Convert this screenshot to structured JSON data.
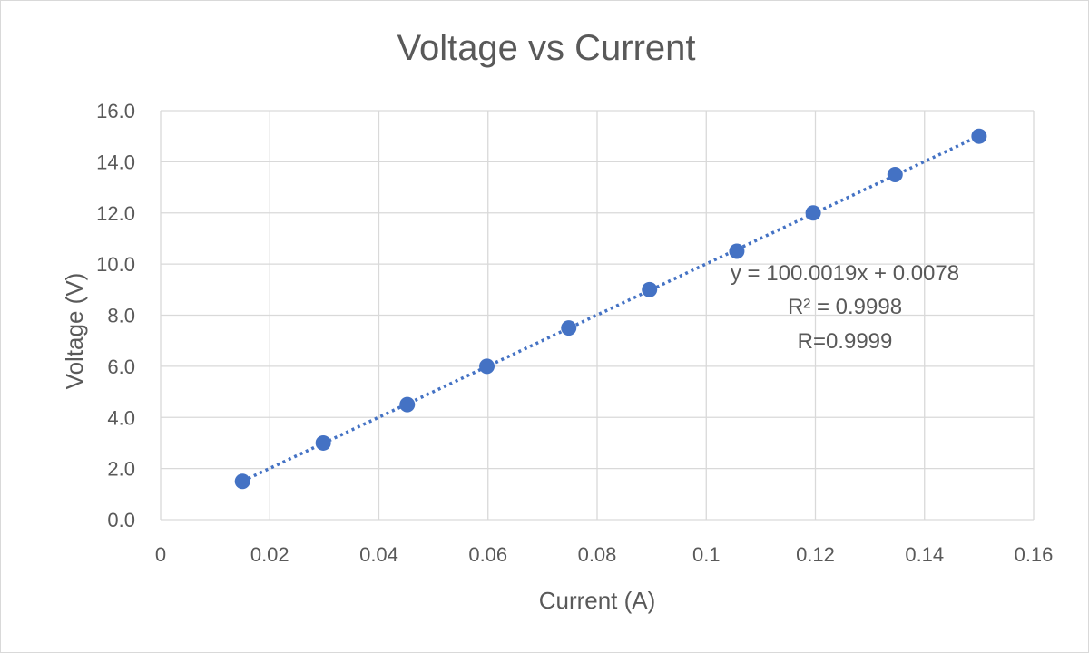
{
  "chart_data": {
    "type": "scatter",
    "title": "Voltage vs Current",
    "xlabel": "Current (A)",
    "ylabel": "Voltage (V)",
    "xlim": [
      0,
      0.16
    ],
    "ylim": [
      0,
      16
    ],
    "x_ticks": [
      "0",
      "0.02",
      "0.04",
      "0.06",
      "0.08",
      "0.1",
      "0.12",
      "0.14",
      "0.16"
    ],
    "y_ticks": [
      "0.0",
      "2.0",
      "4.0",
      "6.0",
      "8.0",
      "10.0",
      "12.0",
      "14.0",
      "16.0"
    ],
    "grid": true,
    "series": [
      {
        "x": [
          0.015,
          0.0298,
          0.0452,
          0.0598,
          0.0748,
          0.0896,
          0.1056,
          0.1196,
          0.1346,
          0.15
        ],
        "y": [
          1.5,
          3.0,
          4.5,
          6.0,
          7.5,
          9.0,
          10.5,
          12.0,
          13.5,
          15.0
        ],
        "color": "#4472c4"
      }
    ],
    "trendline": {
      "type": "linear",
      "slope": 100.0019,
      "intercept": 0.0078,
      "style": "dotted",
      "color": "#4472c4",
      "labels": [
        "y = 100.0019x + 0.0078",
        "R² = 0.9998",
        "R=0.9999"
      ]
    }
  }
}
